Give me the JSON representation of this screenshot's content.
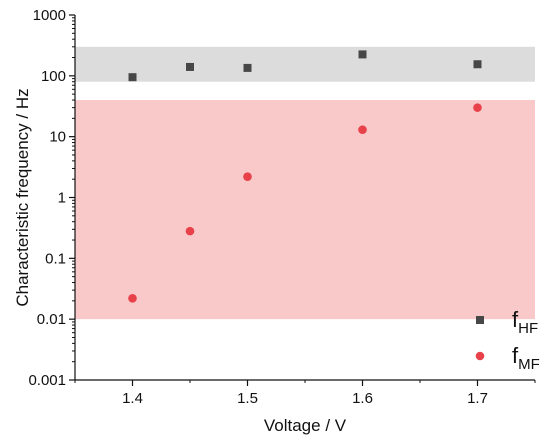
{
  "chart_data": {
    "type": "scatter",
    "x": [
      1.4,
      1.45,
      1.5,
      1.6,
      1.7
    ],
    "series": [
      {
        "name": "f_HF",
        "legend_main": "f",
        "legend_sub": "HF",
        "marker": "square",
        "color": "#474747",
        "values": [
          95,
          140,
          135,
          225,
          155
        ]
      },
      {
        "name": "f_MF",
        "legend_main": "f",
        "legend_sub": "MF",
        "marker": "circle",
        "color": "#e8414a",
        "values": [
          0.022,
          0.28,
          2.2,
          13,
          30
        ]
      }
    ],
    "bands": [
      {
        "ymin": 80,
        "ymax": 300,
        "color": "#dcdcdc"
      },
      {
        "ymin": 0.01,
        "ymax": 40,
        "color": "#f9c9ca"
      }
    ],
    "xlabel": "Voltage / V",
    "ylabel": "Characteristic frequency / Hz",
    "xlim": [
      1.35,
      1.75
    ],
    "ylim": [
      0.001,
      1000
    ],
    "y_scale": "log",
    "x_ticks": [
      "1.4",
      "1.5",
      "1.6",
      "1.7"
    ],
    "x_tick_values": [
      1.4,
      1.5,
      1.6,
      1.7
    ],
    "y_ticks": [
      "0.001",
      "0.01",
      "0.1",
      "1",
      "10",
      "100",
      "1000"
    ],
    "y_tick_values": [
      0.001,
      0.01,
      0.1,
      1,
      10,
      100,
      1000
    ],
    "grid": false,
    "legend_position": "bottom-right"
  }
}
